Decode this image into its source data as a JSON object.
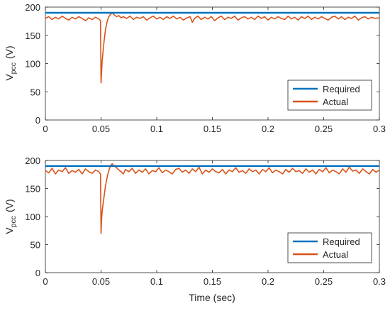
{
  "colors": {
    "required": "#0072BD",
    "actual": "#D95319",
    "axis": "#262626",
    "background": "#ffffff"
  },
  "chart_data": [
    {
      "type": "line",
      "ylabel_main": "V",
      "ylabel_sub": "pcc",
      "ylabel_unit": "(V)",
      "xlabel": "",
      "xlim": [
        0,
        0.3
      ],
      "ylim": [
        0,
        200
      ],
      "xticks": [
        "0",
        "0.05",
        "0.1",
        "0.15",
        "0.2",
        "0.25",
        "0.3"
      ],
      "yticks": [
        "0",
        "50",
        "100",
        "150",
        "200"
      ],
      "grid": false,
      "legend_position": "bottom-right",
      "series": [
        {
          "name": "Required",
          "color": "#0072BD",
          "x": [
            0,
            0.3
          ],
          "y": [
            190,
            190
          ]
        },
        {
          "name": "Actual",
          "color": "#D95319",
          "x": [
            0,
            0.003,
            0.006,
            0.009,
            0.012,
            0.015,
            0.018,
            0.021,
            0.024,
            0.027,
            0.03,
            0.033,
            0.036,
            0.039,
            0.042,
            0.045,
            0.048,
            0.0495,
            0.05,
            0.0505,
            0.051,
            0.052,
            0.053,
            0.054,
            0.055,
            0.056,
            0.057,
            0.058,
            0.059,
            0.06,
            0.062,
            0.064,
            0.066,
            0.068,
            0.07,
            0.073,
            0.076,
            0.079,
            0.082,
            0.085,
            0.088,
            0.091,
            0.094,
            0.097,
            0.1,
            0.103,
            0.106,
            0.109,
            0.112,
            0.115,
            0.118,
            0.121,
            0.124,
            0.127,
            0.13,
            0.132,
            0.134,
            0.137,
            0.14,
            0.143,
            0.146,
            0.149,
            0.152,
            0.155,
            0.158,
            0.161,
            0.164,
            0.167,
            0.17,
            0.173,
            0.176,
            0.179,
            0.182,
            0.185,
            0.188,
            0.191,
            0.194,
            0.197,
            0.2,
            0.203,
            0.206,
            0.209,
            0.212,
            0.215,
            0.218,
            0.221,
            0.224,
            0.227,
            0.23,
            0.233,
            0.236,
            0.239,
            0.242,
            0.245,
            0.248,
            0.251,
            0.254,
            0.257,
            0.26,
            0.263,
            0.266,
            0.269,
            0.272,
            0.275,
            0.278,
            0.281,
            0.284,
            0.287,
            0.29,
            0.293,
            0.296,
            0.3
          ],
          "y": [
            180,
            183,
            178,
            182,
            179,
            184,
            180,
            177,
            182,
            179,
            183,
            180,
            176,
            181,
            178,
            182,
            179,
            176,
            66,
            85,
            105,
            125,
            145,
            160,
            170,
            178,
            183,
            186,
            188,
            190,
            186,
            183,
            185,
            181,
            183,
            180,
            184,
            178,
            182,
            180,
            183,
            177,
            181,
            184,
            179,
            182,
            178,
            183,
            180,
            184,
            179,
            182,
            177,
            181,
            183,
            173,
            180,
            184,
            178,
            182,
            179,
            183,
            176,
            181,
            184,
            178,
            182,
            180,
            184,
            177,
            181,
            183,
            179,
            182,
            178,
            184,
            180,
            183,
            177,
            182,
            179,
            183,
            180,
            178,
            184,
            179,
            182,
            177,
            183,
            180,
            184,
            178,
            182,
            179,
            183,
            180,
            177,
            182,
            184,
            179,
            183,
            178,
            182,
            180,
            184,
            177,
            181,
            183,
            179,
            182,
            180,
            181
          ]
        }
      ]
    },
    {
      "type": "line",
      "ylabel_main": "V",
      "ylabel_sub": "pcc",
      "ylabel_unit": "(V)",
      "xlabel": "Time (sec)",
      "xlim": [
        0,
        0.3
      ],
      "ylim": [
        0,
        200
      ],
      "xticks": [
        "0",
        "0.05",
        "0.1",
        "0.15",
        "0.2",
        "0.25",
        "0.3"
      ],
      "yticks": [
        "0",
        "50",
        "100",
        "150",
        "200"
      ],
      "grid": false,
      "legend_position": "bottom-right",
      "series": [
        {
          "name": "Required",
          "color": "#0072BD",
          "x": [
            0,
            0.3
          ],
          "y": [
            190,
            190
          ]
        },
        {
          "name": "Actual",
          "color": "#D95319",
          "x": [
            0,
            0.003,
            0.006,
            0.009,
            0.012,
            0.015,
            0.018,
            0.021,
            0.024,
            0.027,
            0.03,
            0.033,
            0.036,
            0.039,
            0.042,
            0.045,
            0.048,
            0.0495,
            0.05,
            0.0505,
            0.051,
            0.052,
            0.053,
            0.054,
            0.055,
            0.056,
            0.057,
            0.058,
            0.059,
            0.06,
            0.062,
            0.064,
            0.066,
            0.068,
            0.07,
            0.072,
            0.075,
            0.078,
            0.081,
            0.084,
            0.087,
            0.09,
            0.093,
            0.096,
            0.099,
            0.102,
            0.105,
            0.108,
            0.111,
            0.114,
            0.117,
            0.12,
            0.123,
            0.126,
            0.129,
            0.132,
            0.135,
            0.138,
            0.141,
            0.144,
            0.147,
            0.15,
            0.153,
            0.156,
            0.159,
            0.162,
            0.165,
            0.168,
            0.171,
            0.174,
            0.177,
            0.18,
            0.183,
            0.186,
            0.189,
            0.192,
            0.195,
            0.198,
            0.201,
            0.204,
            0.207,
            0.21,
            0.213,
            0.216,
            0.219,
            0.222,
            0.225,
            0.228,
            0.231,
            0.234,
            0.237,
            0.24,
            0.243,
            0.246,
            0.249,
            0.252,
            0.255,
            0.258,
            0.261,
            0.264,
            0.267,
            0.27,
            0.273,
            0.276,
            0.279,
            0.282,
            0.285,
            0.288,
            0.291,
            0.294,
            0.297,
            0.3
          ],
          "y": [
            182,
            178,
            186,
            176,
            183,
            180,
            187,
            177,
            182,
            179,
            184,
            176,
            185,
            180,
            177,
            183,
            180,
            176,
            70,
            95,
            110,
            125,
            140,
            155,
            165,
            175,
            182,
            188,
            192,
            194,
            190,
            187,
            183,
            180,
            176,
            184,
            180,
            186,
            177,
            183,
            179,
            185,
            176,
            182,
            180,
            187,
            178,
            183,
            180,
            176,
            184,
            186,
            179,
            183,
            177,
            185,
            180,
            188,
            176,
            183,
            179,
            185,
            180,
            178,
            184,
            176,
            183,
            180,
            187,
            179,
            182,
            177,
            185,
            180,
            183,
            176,
            184,
            180,
            187,
            178,
            183,
            180,
            176,
            184,
            179,
            186,
            180,
            182,
            177,
            185,
            179,
            183,
            176,
            184,
            180,
            187,
            178,
            183,
            180,
            176,
            185,
            179,
            188,
            181,
            183,
            177,
            185,
            180,
            176,
            184,
            179,
            183
          ]
        }
      ]
    }
  ]
}
